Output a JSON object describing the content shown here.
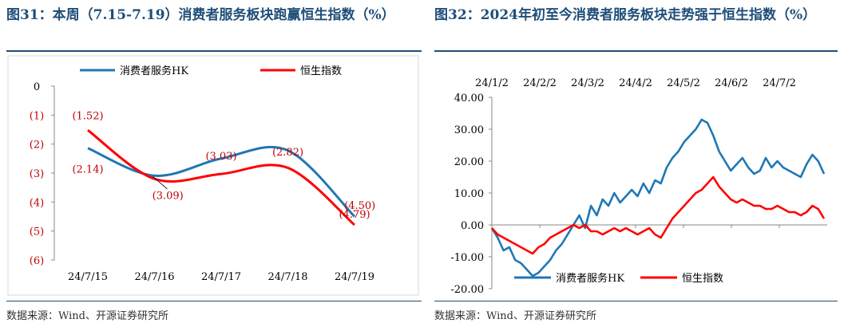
{
  "left": {
    "title": "图31：本周（7.15-7.19）消费者服务板块跑赢恒生指数（%）",
    "source": "数据来源：Wind、开源证券研究所",
    "chart_data": {
      "type": "line",
      "categories": [
        "24/7/15",
        "24/7/16",
        "24/7/17",
        "24/7/18",
        "24/7/19"
      ],
      "series": [
        {
          "name": "消费者服务HK",
          "color": "#1f77b4",
          "values": [
            -2.14,
            -3.09,
            -2.5,
            -2.22,
            -4.5
          ]
        },
        {
          "name": "恒生指数",
          "color": "#ff0000",
          "values": [
            -1.52,
            -3.2,
            -3.03,
            -2.82,
            -4.79
          ]
        }
      ],
      "data_labels": [
        {
          "text": "(1.52)",
          "x": 0,
          "y": -1.0
        },
        {
          "text": "(2.14)",
          "x": 0,
          "y": -2.85
        },
        {
          "text": "(3.09)",
          "x": 1.2,
          "y": -3.75
        },
        {
          "text": "(3.03)",
          "x": 2.0,
          "y": -2.4
        },
        {
          "text": "(2.82)",
          "x": 3.0,
          "y": -2.25
        },
        {
          "text": "(4.50)",
          "x": 4.08,
          "y": -4.1
        },
        {
          "text": "(4.79)",
          "x": 4.0,
          "y": -4.4
        }
      ],
      "yticks": [
        "0",
        "(1)",
        "(2)",
        "(3)",
        "(4)",
        "(5)",
        "(6)"
      ],
      "ylim": [
        -6,
        0
      ],
      "legend": [
        "消费者服务HK",
        "恒生指数"
      ],
      "legend_position": "top"
    }
  },
  "right": {
    "title": "图32：2024年初至今消费者服务板块走势强于恒生指数（%）",
    "source": "数据来源：Wind、开源证券研究所",
    "chart_data": {
      "type": "line",
      "xticks": [
        "24/1/2",
        "24/2/2",
        "24/3/2",
        "24/4/2",
        "24/5/2",
        "24/6/2",
        "24/7/2"
      ],
      "yticks": [
        "40.00",
        "30.00",
        "20.00",
        "10.00",
        "0.00",
        "-10.00",
        "-20.00"
      ],
      "ylim": [
        -20,
        40
      ],
      "series": [
        {
          "name": "消费者服务HK",
          "color": "#1f77b4",
          "values": [
            -1,
            -4,
            -8,
            -7,
            -11,
            -12,
            -14,
            -16,
            -15,
            -13,
            -11,
            -8,
            -6,
            -3,
            0,
            3,
            -1,
            6,
            3,
            8,
            6,
            10,
            7,
            9,
            11,
            9,
            13,
            10,
            14,
            13,
            18,
            21,
            23,
            26,
            28,
            30,
            33,
            32,
            28,
            23,
            20,
            17,
            19,
            21,
            18,
            16,
            17,
            21,
            18,
            20,
            18,
            17,
            16,
            15,
            19,
            22,
            20,
            16
          ]
        },
        {
          "name": "恒生指数",
          "color": "#ff0000",
          "values": [
            -1,
            -3,
            -4,
            -5,
            -6,
            -7,
            -8,
            -9,
            -7,
            -6,
            -4,
            -3,
            -2,
            -1,
            0,
            -1,
            0,
            -2,
            -2,
            -3,
            -2,
            -1,
            -2,
            -1,
            -2,
            -3,
            -2,
            -1,
            -3,
            -4,
            -1,
            2,
            4,
            6,
            8,
            10,
            11,
            13,
            15,
            12,
            10,
            8,
            7,
            8,
            7,
            6,
            6,
            5,
            5,
            6,
            5,
            4,
            4,
            3,
            4,
            6,
            5,
            2
          ]
        }
      ],
      "legend": [
        "消费者服务HK",
        "恒生指数"
      ],
      "legend_position": "bottom"
    }
  }
}
